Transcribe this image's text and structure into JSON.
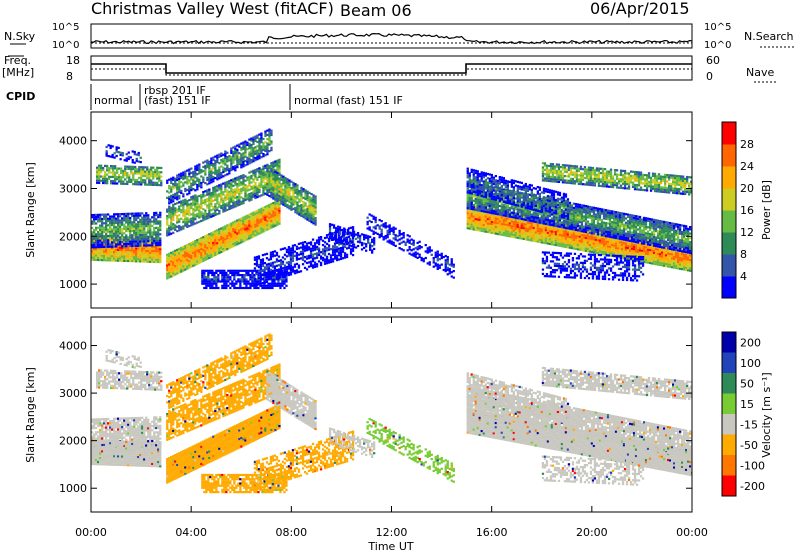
{
  "header": {
    "title": "Christmas Valley West (fitACF)",
    "beam": "Beam 06",
    "date": "06/Apr/2015"
  },
  "top_panels": {
    "nsky_label": "N.Sky",
    "nsearch_label": "N.Search",
    "nsky_ticks": [
      "10^5",
      "10^0"
    ],
    "nsearch_ticks": [
      "10^5",
      "10^0"
    ],
    "freq_label": "Freq.",
    "freq_unit": "[MHz]",
    "freq_ticks": [
      "18",
      "8"
    ],
    "nave_label": "Nave",
    "nave_ticks": [
      "60",
      "0"
    ],
    "cpid_label": "CPID",
    "cpid_segments": [
      "normal",
      "rbsp 201 IF",
      "(fast) 151 IF",
      "normal (fast) 151 IF"
    ]
  },
  "colors": {
    "power_scale": [
      "#0000ff",
      "#3355aa",
      "#2e8b57",
      "#66bb44",
      "#cccc22",
      "#ffaa00",
      "#ff6600",
      "#ff0000"
    ],
    "velocity_scale": [
      "#0000aa",
      "#2244bb",
      "#2e8b57",
      "#77cc33",
      "#c8c8c0",
      "#ffaa00",
      "#ff7700",
      "#ff0000"
    ]
  },
  "chart_data": [
    {
      "type": "heatmap",
      "name": "Power",
      "ylabel": "Slant Range [km]",
      "xlabel": "",
      "yticks": [
        1000,
        2000,
        3000,
        4000
      ],
      "ylim": [
        500,
        4600
      ],
      "xlim": [
        0,
        24
      ],
      "colorbar_label": "Power [dB]",
      "colorbar_ticks": [
        "4",
        "8",
        "12",
        "16",
        "20",
        "24",
        "28"
      ],
      "colorbar_range": [
        0,
        32
      ]
    },
    {
      "type": "heatmap",
      "name": "Velocity",
      "ylabel": "Slant Range [km]",
      "xlabel": "Time UT",
      "yticks": [
        1000,
        2000,
        3000,
        4000
      ],
      "ylim": [
        500,
        4600
      ],
      "xlim": [
        0,
        24
      ],
      "xticks": [
        "00:00",
        "04:00",
        "08:00",
        "12:00",
        "16:00",
        "20:00",
        "00:00"
      ],
      "colorbar_label": "Velocity [m s⁻¹]",
      "colorbar_ticks": [
        "200",
        "100",
        "50",
        "15",
        "-15",
        "-50",
        "-100",
        "-200"
      ]
    }
  ]
}
